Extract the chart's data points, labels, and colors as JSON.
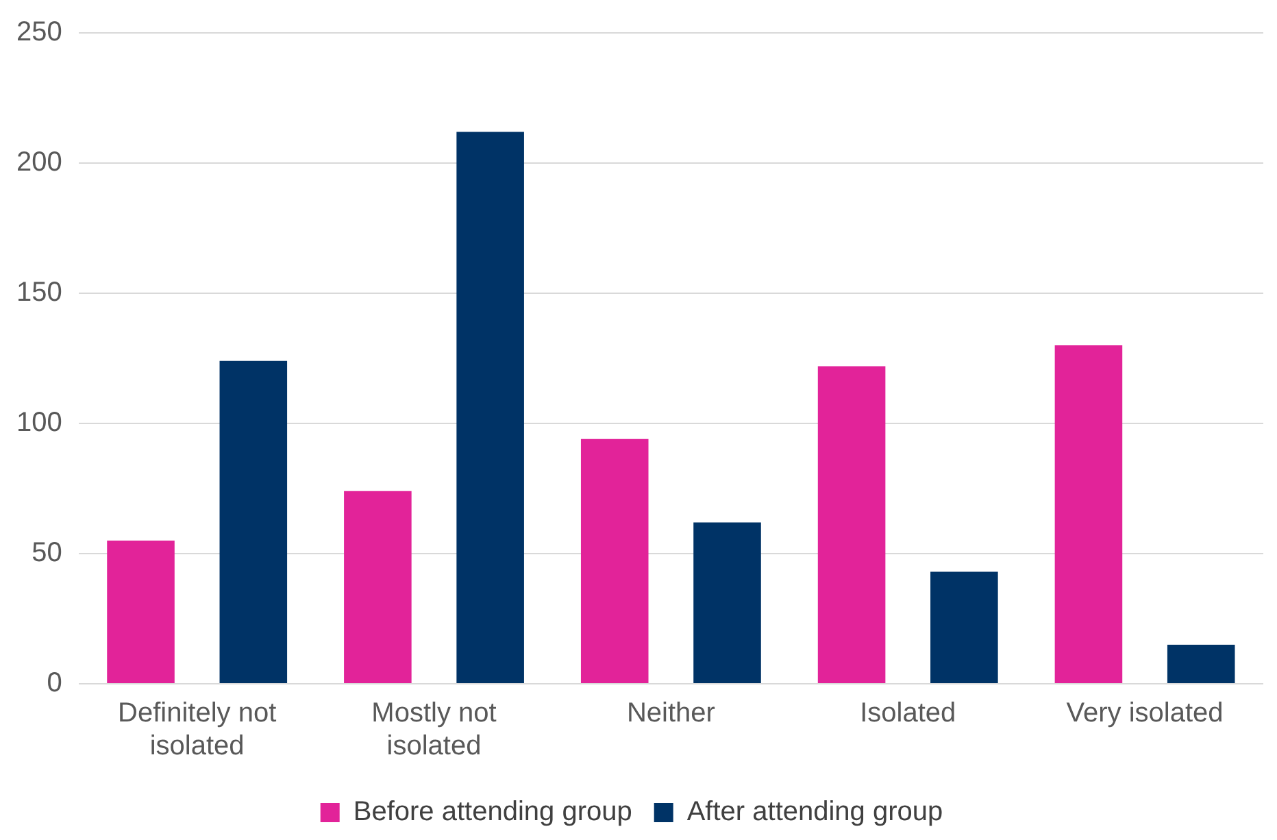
{
  "chart_data": {
    "type": "bar",
    "categories": [
      "Definitely not isolated",
      "Mostly not isolated",
      "Neither",
      "Isolated",
      "Very isolated"
    ],
    "series": [
      {
        "name": "Before attending group",
        "color": "#e22399",
        "values": [
          55,
          74,
          94,
          122,
          130
        ]
      },
      {
        "name": "After attending group",
        "color": "#003366",
        "values": [
          124,
          212,
          62,
          43,
          15
        ]
      }
    ],
    "ylim": [
      0,
      250
    ],
    "yticks": [
      0,
      50,
      100,
      150,
      200,
      250
    ],
    "grid": "y",
    "legend": "bottom"
  }
}
